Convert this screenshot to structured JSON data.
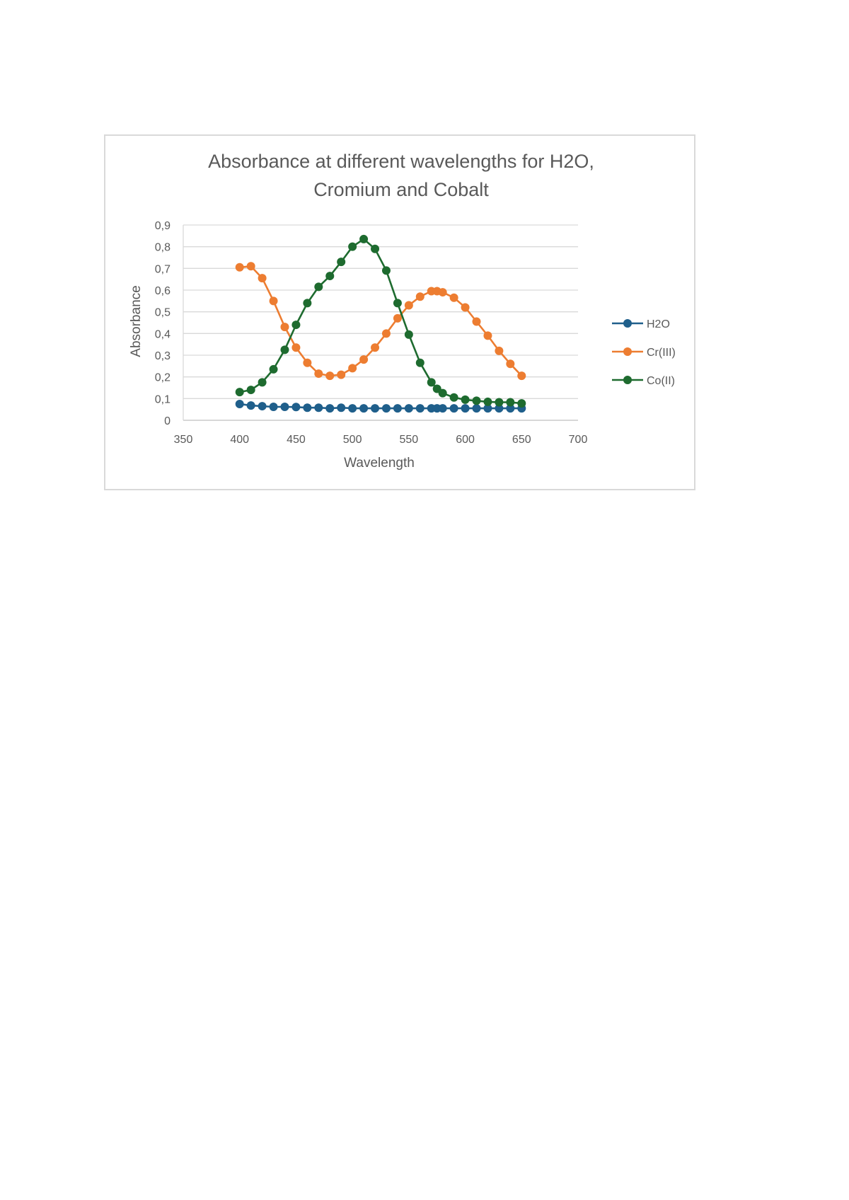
{
  "chart_data": {
    "type": "line",
    "title_lines": [
      "Absorbance at different wavelengths for H2O,",
      "Cromium and Cobalt"
    ],
    "xlabel": "Wavelength",
    "ylabel": "Absorbance",
    "xlim": [
      350,
      700
    ],
    "ylim": [
      0,
      0.9
    ],
    "xticks": [
      350,
      400,
      450,
      500,
      550,
      600,
      650,
      700
    ],
    "xtick_labels": [
      "350",
      "400",
      "450",
      "500",
      "550",
      "600",
      "650",
      "700"
    ],
    "yticks": [
      0,
      0.1,
      0.2,
      0.3,
      0.4,
      0.5,
      0.6,
      0.7,
      0.8,
      0.9
    ],
    "ytick_labels": [
      "0",
      "0,1",
      "0,2",
      "0,3",
      "0,4",
      "0,5",
      "0,6",
      "0,7",
      "0,8",
      "0,9"
    ],
    "grid": true,
    "legend_position": "right",
    "series": [
      {
        "name": "H2O",
        "color": "#1f5f8b",
        "x": [
          400,
          410,
          420,
          430,
          440,
          450,
          460,
          470,
          480,
          490,
          500,
          510,
          520,
          530,
          540,
          550,
          560,
          570,
          575,
          580,
          590,
          600,
          610,
          620,
          630,
          640,
          650
        ],
        "y": [
          0.075,
          0.068,
          0.065,
          0.062,
          0.062,
          0.061,
          0.058,
          0.058,
          0.055,
          0.058,
          0.055,
          0.055,
          0.055,
          0.055,
          0.055,
          0.055,
          0.055,
          0.055,
          0.055,
          0.055,
          0.055,
          0.055,
          0.055,
          0.055,
          0.055,
          0.055,
          0.055
        ]
      },
      {
        "name": "Cr(III)",
        "color": "#ed7d31",
        "x": [
          400,
          410,
          420,
          430,
          440,
          450,
          460,
          470,
          480,
          490,
          500,
          510,
          520,
          530,
          540,
          550,
          560,
          570,
          575,
          580,
          590,
          600,
          610,
          620,
          630,
          640,
          650
        ],
        "y": [
          0.705,
          0.71,
          0.655,
          0.55,
          0.43,
          0.335,
          0.265,
          0.215,
          0.205,
          0.21,
          0.24,
          0.28,
          0.335,
          0.4,
          0.47,
          0.53,
          0.57,
          0.595,
          0.595,
          0.59,
          0.565,
          0.52,
          0.455,
          0.39,
          0.32,
          0.26,
          0.205
        ]
      },
      {
        "name": "Co(II)",
        "color": "#1e6b2f",
        "x": [
          400,
          410,
          420,
          430,
          440,
          450,
          460,
          470,
          480,
          490,
          500,
          510,
          520,
          530,
          540,
          550,
          560,
          570,
          575,
          580,
          590,
          600,
          610,
          620,
          630,
          640,
          650
        ],
        "y": [
          0.13,
          0.14,
          0.175,
          0.235,
          0.325,
          0.44,
          0.54,
          0.615,
          0.665,
          0.73,
          0.8,
          0.835,
          0.79,
          0.69,
          0.54,
          0.395,
          0.265,
          0.175,
          0.145,
          0.125,
          0.105,
          0.095,
          0.09,
          0.085,
          0.083,
          0.083,
          0.078
        ]
      }
    ]
  }
}
